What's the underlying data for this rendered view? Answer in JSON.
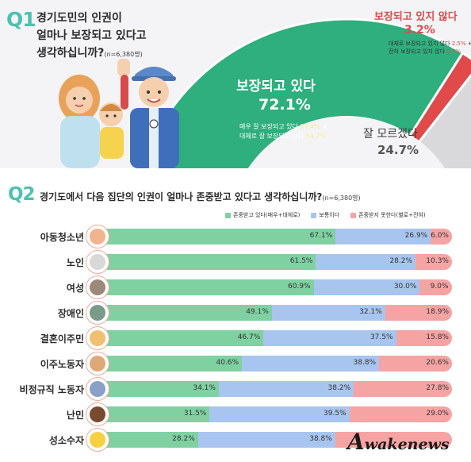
{
  "q1": {
    "label": "Q1",
    "title_lines": [
      "경기도민의 인권이",
      "얼마나 보장되고 있다고",
      "생각하십니까?"
    ],
    "n": "(n=6,380명)",
    "slices": {
      "guaranteed": {
        "label": "보장되고 있다",
        "pct": "72.1%",
        "sub_line1_prefix": "매우 잘 보장되고 있다 ",
        "sub_line1_value": "17.4%",
        "sub_line1_suffix": " +",
        "sub_line2_prefix": "대체로 잘 보장되고 있다 ",
        "sub_line2_value": "54.7%"
      },
      "unknown": {
        "label": "잘 모르겠다",
        "pct": "24.7%"
      },
      "not_guaranteed": {
        "label": "보장되고 있지 않다",
        "pct": "3.2%",
        "sub_line1_prefix": "대체로 보장되고 있지 않다 ",
        "sub_line1_value": "2.5%",
        "sub_line1_suffix": " +",
        "sub_line2_prefix": "전혀 보장되고 있지 않다 ",
        "sub_line2_value": "0.7%"
      }
    }
  },
  "q2": {
    "label": "Q2",
    "title": "경기도에서 다음 집단의 인권이 얼마나 존중받고 있다고 생각하십니까?",
    "n": "(n=6,380명)",
    "legend": [
      "존중받고 있다(매우+대체로)",
      "보통이다",
      "존중받지 못한다(별로+전혀)"
    ]
  },
  "colors": {
    "teal": "#4cc1b2",
    "pie_green": "#2eaf7d",
    "pie_gray": "#d9d9dc",
    "pie_red": "#e04a4a",
    "bar_green": "#7fd1a2",
    "bar_blue": "#a8c5ef",
    "bar_red": "#f6a3a3"
  },
  "chart_data": [
    {
      "type": "pie",
      "categories": [
        "보장되고 있다",
        "잘 모르겠다",
        "보장되고 있지 않다"
      ],
      "values": [
        72.1,
        24.7,
        3.2
      ]
    },
    {
      "type": "bar",
      "orientation": "horizontal-stacked",
      "categories": [
        "아동청소년",
        "노인",
        "여성",
        "장애인",
        "결혼이주민",
        "이주노동자",
        "비정규직 노동자",
        "난민",
        "성소수자"
      ],
      "series": [
        {
          "name": "존중받고 있다(매우+대체로)",
          "values": [
            67.1,
            61.5,
            60.9,
            49.1,
            46.7,
            40.6,
            34.1,
            31.5,
            28.2
          ]
        },
        {
          "name": "보통이다",
          "values": [
            26.9,
            28.2,
            30.0,
            32.1,
            37.5,
            38.8,
            38.2,
            39.5,
            38.8
          ]
        },
        {
          "name": "존중받지 못한다(별로+전혀)",
          "values": [
            6.0,
            10.3,
            9.0,
            18.9,
            15.8,
            20.6,
            27.8,
            29.0,
            null
          ]
        }
      ],
      "labels": [
        [
          "67.1%",
          "26.9%",
          "6.0%"
        ],
        [
          "61.5%",
          "28.2%",
          "10.3%"
        ],
        [
          "60.9%",
          "30.0%",
          "9.0%"
        ],
        [
          "49.1%",
          "32.1%",
          "18.9%"
        ],
        [
          "46.7%",
          "37.5%",
          "15.8%"
        ],
        [
          "40.6%",
          "38.8%",
          "20.6%"
        ],
        [
          "34.1%",
          "38.2%",
          "27.8%"
        ],
        [
          "31.5%",
          "39.5%",
          "29.0%"
        ],
        [
          "28.2%",
          "38.8%",
          ""
        ]
      ],
      "icons": [
        "child-icon",
        "elderly-icon",
        "woman-icon",
        "wheelchair-icon",
        "wedding-icon",
        "worker-icon",
        "helmet-worker-icon",
        "refugee-icon",
        "smile-icon"
      ]
    }
  ],
  "watermark": {
    "first": "A",
    "rest": "wakenews"
  }
}
